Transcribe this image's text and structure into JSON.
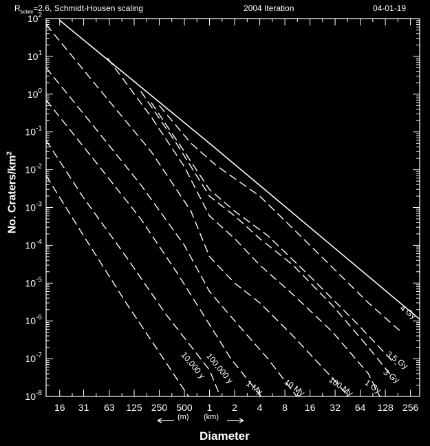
{
  "header": {
    "left_main": "R",
    "left_sub": "bolide",
    "left_rest": "=2.6, Schmidt-Housen scaling",
    "center": "2004 Iteration",
    "right": "04-01-19"
  },
  "unit_note": {
    "meters": "(m)",
    "kilometers": "(km)"
  },
  "chart_data": {
    "type": "line",
    "xscale": "log",
    "yscale": "log",
    "xlabel": "Diameter",
    "ylabel": "No. Craters/km",
    "ylabel_sup": "2",
    "xlim_km": [
      0.011,
      330
    ],
    "ylim": [
      1e-08,
      100
    ],
    "xticks": [
      {
        "km": 0.016,
        "label": "16"
      },
      {
        "km": 0.031,
        "label": "31"
      },
      {
        "km": 0.063,
        "label": "63"
      },
      {
        "km": 0.125,
        "label": "125"
      },
      {
        "km": 0.25,
        "label": "250"
      },
      {
        "km": 0.5,
        "label": "500"
      },
      {
        "km": 1,
        "label": "1"
      },
      {
        "km": 2,
        "label": "2"
      },
      {
        "km": 4,
        "label": "4"
      },
      {
        "km": 8,
        "label": "8"
      },
      {
        "km": 16,
        "label": "16"
      },
      {
        "km": 32,
        "label": "32"
      },
      {
        "km": 64,
        "label": "64"
      },
      {
        "km": 128,
        "label": "128"
      },
      {
        "km": 256,
        "label": "256"
      }
    ],
    "yticks": [
      {
        "exp": 2,
        "label": "10",
        "sup": "2"
      },
      {
        "exp": 1,
        "label": "10",
        "sup": "1"
      },
      {
        "exp": 0,
        "label": "10",
        "sup": "0"
      },
      {
        "exp": -1,
        "label": "10",
        "sup": "-1"
      },
      {
        "exp": -2,
        "label": "10",
        "sup": "-2"
      },
      {
        "exp": -3,
        "label": "10",
        "sup": "-3"
      },
      {
        "exp": -4,
        "label": "10",
        "sup": "-4"
      },
      {
        "exp": -5,
        "label": "10",
        "sup": "-5"
      },
      {
        "exp": -6,
        "label": "10",
        "sup": "-6"
      },
      {
        "exp": -7,
        "label": "10",
        "sup": "-7"
      },
      {
        "exp": -8,
        "label": "10",
        "sup": "-8"
      }
    ],
    "saturation_line": {
      "x": [
        0.016,
        1,
        330
      ],
      "y": [
        90,
        0.05,
        1.1e-06
      ]
    },
    "series": [
      {
        "name": "10,000 y",
        "dash": true,
        "x": [
          0.011,
          0.03,
          0.1,
          0.3,
          0.6
        ],
        "y": [
          0.007,
          0.0002,
          3e-06,
          8e-08,
          8e-09
        ]
      },
      {
        "name": "100,000 y",
        "dash": true,
        "x": [
          0.011,
          0.03,
          0.1,
          0.3,
          1,
          1.4
        ],
        "y": [
          0.06,
          0.002,
          5e-05,
          1.5e-06,
          5e-08,
          8e-09
        ]
      },
      {
        "name": "1 My",
        "dash": true,
        "x": [
          0.011,
          0.04,
          0.15,
          0.4,
          1,
          1.8,
          4.5
        ],
        "y": [
          0.7,
          0.02,
          0.0005,
          2e-05,
          8e-07,
          1e-07,
          8e-09
        ]
      },
      {
        "name": "10 My",
        "dash": true,
        "x": [
          0.011,
          0.04,
          0.15,
          0.5,
          1,
          2,
          5,
          12
        ],
        "y": [
          5,
          0.15,
          0.004,
          0.0001,
          6e-06,
          1e-06,
          1e-07,
          8e-09
        ]
      },
      {
        "name": "100 My",
        "dash": true,
        "x": [
          0.011,
          0.05,
          0.2,
          0.6,
          1,
          2,
          4,
          10,
          30,
          50
        ],
        "y": [
          70,
          1.2,
          0.03,
          0.0008,
          5e-05,
          1e-05,
          3e-06,
          4e-07,
          3e-08,
          8e-09
        ]
      },
      {
        "name": "1 Gy",
        "dash": true,
        "x": [
          0.06,
          0.2,
          0.5,
          1,
          2,
          4,
          10,
          30,
          80,
          110
        ],
        "y": [
          9,
          0.25,
          0.012,
          0.0006,
          0.00015,
          3e-05,
          5e-06,
          5e-07,
          4e-08,
          1e-08
        ]
      },
      {
        "name": "3 Gy",
        "dash": true,
        "x": [
          0.15,
          0.4,
          1,
          2,
          4,
          10,
          30,
          80,
          160
        ],
        "y": [
          1.2,
          0.05,
          0.002,
          0.0006,
          0.00015,
          3e-05,
          2.5e-06,
          2e-07,
          3e-08
        ]
      },
      {
        "name": "3.5 Gy",
        "dash": true,
        "x": [
          0.2,
          0.5,
          1,
          2,
          5,
          16,
          60,
          170
        ],
        "y": [
          0.6,
          0.03,
          0.003,
          0.0008,
          0.00018,
          1.5e-05,
          8e-07,
          7e-08
        ]
      },
      {
        "name": "4 Gy",
        "dash": true,
        "x": [
          0.25,
          0.6,
          1.2,
          4,
          16,
          80,
          200
        ],
        "y": [
          0.5,
          0.05,
          0.013,
          0.002,
          0.0001,
          3e-06,
          5e-07
        ]
      }
    ],
    "curve_labels": [
      {
        "text": "10,000 y",
        "x": 0.6,
        "y": 6e-08,
        "angle": 50
      },
      {
        "text": "100,000 y",
        "x": 1.25,
        "y": 5e-08,
        "angle": 50
      },
      {
        "text": "1 My",
        "x": 3.3,
        "y": 1.5e-08,
        "angle": 35
      },
      {
        "text": "10 My",
        "x": 10,
        "y": 1.5e-08,
        "angle": 35
      },
      {
        "text": "100 My",
        "x": 36,
        "y": 1.6e-08,
        "angle": 35
      },
      {
        "text": "1 Gy",
        "x": 87,
        "y": 1.6e-08,
        "angle": 35
      },
      {
        "text": "3 Gy",
        "x": 145,
        "y": 3e-08,
        "angle": 35
      },
      {
        "text": "3.5 Gy",
        "x": 170,
        "y": 8e-08,
        "angle": 35
      },
      {
        "text": "4 Gy",
        "x": 230,
        "y": 1.5e-06,
        "angle": 35
      }
    ]
  }
}
